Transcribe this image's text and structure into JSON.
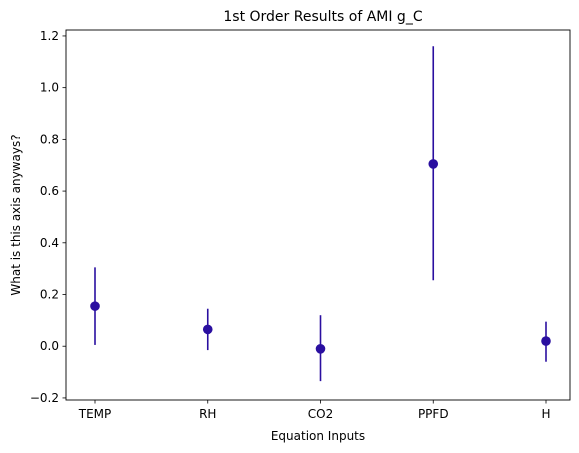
{
  "chart_data": {
    "type": "scatter",
    "title": "1st Order Results of AMI g_C",
    "xlabel": "Equation Inputs",
    "ylabel": "What is this axis anyways?",
    "categories": [
      "TEMP",
      "RH",
      "CO2",
      "PPFD",
      "H"
    ],
    "values": [
      0.155,
      0.065,
      -0.01,
      0.705,
      0.02
    ],
    "error_low": [
      0.005,
      -0.015,
      -0.135,
      0.255,
      -0.06
    ],
    "error_high": [
      0.305,
      0.145,
      0.12,
      1.16,
      0.095
    ],
    "yticks": [
      -0.2,
      0.0,
      0.2,
      0.4,
      0.6,
      0.8,
      1.0,
      1.2
    ],
    "ytick_labels": [
      "−0.2",
      "0.0",
      "0.2",
      "0.4",
      "0.6",
      "0.8",
      "1.0",
      "1.2"
    ],
    "ylim": [
      -0.208,
      1.223
    ],
    "grid": false,
    "color": "#2a0fa0"
  }
}
